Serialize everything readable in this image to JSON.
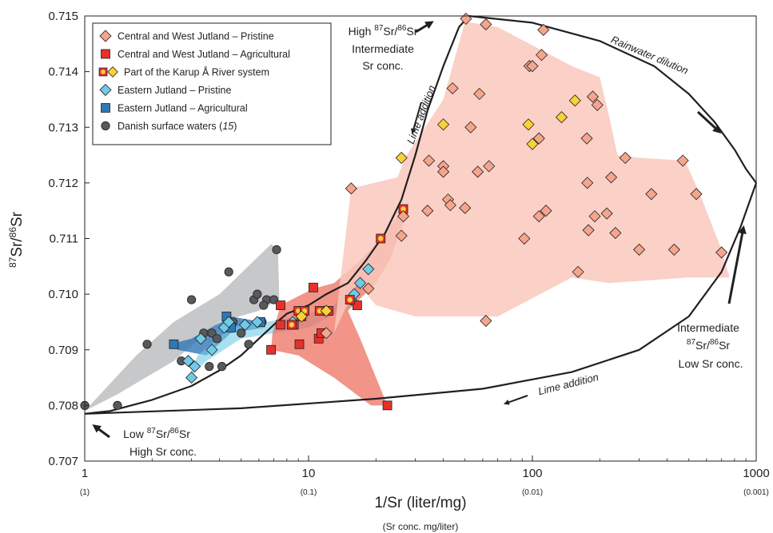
{
  "chart_data": {
    "type": "scatter",
    "xlabel": "1/Sr (liter/mg)",
    "xlabel_sub": "(Sr conc. mg/liter)",
    "ylabel_main": "Sr/",
    "ylabel_sup1": "87",
    "ylabel_sup2": "86",
    "ylabel_end": "Sr",
    "xscale": "log",
    "xlim": [
      1,
      1000
    ],
    "ylim": [
      0.707,
      0.715
    ],
    "x_ticks": [
      {
        "value": 1,
        "label": "1",
        "sub": "(1)"
      },
      {
        "value": 10,
        "label": "10",
        "sub": "(0.1)"
      },
      {
        "value": 100,
        "label": "100",
        "sub": "(0.01)"
      },
      {
        "value": 1000,
        "label": "1000",
        "sub": "(0.001)"
      }
    ],
    "y_ticks": [
      "0.707",
      "0.708",
      "0.709",
      "0.710",
      "0.711",
      "0.712",
      "0.713",
      "0.714",
      "0.715"
    ],
    "legend_position": "top-left",
    "colors": {
      "cw_pristine": "#f4a58c",
      "cw_agri": "#e8302a",
      "karup_fill": "#f9d23a",
      "e_pristine": "#6fcbe8",
      "e_agri": "#2f78b7",
      "danish": "#58595b",
      "outline": "#231f20"
    },
    "legend": [
      {
        "label": "Central and West Jutland – Pristine",
        "marker": "diamond",
        "color": "#f4a58c"
      },
      {
        "label": "Central and West Jutland – Agricultural",
        "marker": "square",
        "color": "#e8302a"
      },
      {
        "label": "Part of the Karup Å River system",
        "marker": "karup",
        "color": "#f9d23a"
      },
      {
        "label": "Eastern Jutland – Pristine",
        "marker": "diamond",
        "color": "#6fcbe8"
      },
      {
        "label": "Eastern Jutland – Agricultural",
        "marker": "square",
        "color": "#2f78b7"
      },
      {
        "label": "Danish surface waters (",
        "label_it": "15",
        "label_end": ")",
        "marker": "circle",
        "color": "#58595b"
      }
    ],
    "regions": [
      {
        "name": "danish-surface-waters-region",
        "color": "#bcbec0",
        "opacity": 0.85,
        "points": [
          [
            1,
            0.7079
          ],
          [
            1.4,
            0.7082
          ],
          [
            2.5,
            0.7088
          ],
          [
            4,
            0.7095
          ],
          [
            6,
            0.7097
          ],
          [
            7.4,
            0.7099
          ],
          [
            7.3,
            0.7108
          ],
          [
            6.8,
            0.7109
          ],
          [
            4,
            0.71
          ],
          [
            2.5,
            0.7095
          ],
          [
            1.7,
            0.7089
          ]
        ]
      },
      {
        "name": "eastern-jutland-agricultural-region",
        "color": "#2f78b7",
        "opacity": 0.8,
        "points": [
          [
            2.4,
            0.7091
          ],
          [
            3,
            0.7092
          ],
          [
            4.5,
            0.7096
          ],
          [
            6.2,
            0.7095
          ],
          [
            6.4,
            0.7094
          ],
          [
            4.5,
            0.7093
          ],
          [
            3.5,
            0.7089
          ],
          [
            2.6,
            0.709
          ]
        ]
      },
      {
        "name": "eastern-jutland-pristine-region",
        "color": "#6fcbe8",
        "opacity": 0.6,
        "points": [
          [
            2.9,
            0.7085
          ],
          [
            3.2,
            0.7089
          ],
          [
            4.5,
            0.7094
          ],
          [
            6.5,
            0.7095
          ],
          [
            9,
            0.7096
          ],
          [
            13,
            0.7098
          ],
          [
            17.5,
            0.7104
          ],
          [
            18,
            0.7103
          ],
          [
            14,
            0.7097
          ],
          [
            10,
            0.7094
          ],
          [
            7,
            0.7093
          ],
          [
            5,
            0.7092
          ],
          [
            3.5,
            0.7088
          ]
        ]
      },
      {
        "name": "central-west-agricultural-region",
        "color": "#ed7060",
        "opacity": 0.75,
        "points": [
          [
            6.8,
            0.709
          ],
          [
            6.9,
            0.7093
          ],
          [
            7.5,
            0.7098
          ],
          [
            10.5,
            0.7101
          ],
          [
            13,
            0.7102
          ],
          [
            17,
            0.7106
          ],
          [
            21,
            0.711
          ],
          [
            26.5,
            0.71155
          ],
          [
            27.5,
            0.71145
          ],
          [
            23,
            0.7106
          ],
          [
            20,
            0.7102
          ],
          [
            15,
            0.7097
          ],
          [
            17,
            0.7092
          ],
          [
            22.5,
            0.708
          ],
          [
            19,
            0.708
          ],
          [
            13,
            0.7085
          ],
          [
            9,
            0.7089
          ]
        ]
      },
      {
        "name": "central-west-pristine-region",
        "color": "#f9c8bd",
        "opacity": 0.85,
        "points": [
          [
            13,
            0.7093
          ],
          [
            15.5,
            0.7119
          ],
          [
            25,
            0.7121
          ],
          [
            27,
            0.71245
          ],
          [
            40,
            0.7135
          ],
          [
            50,
            0.7149
          ],
          [
            70,
            0.7148
          ],
          [
            150,
            0.7141
          ],
          [
            200,
            0.7139
          ],
          [
            220,
            0.7132
          ],
          [
            240,
            0.7125
          ],
          [
            300,
            0.71245
          ],
          [
            480,
            0.7124
          ],
          [
            560,
            0.7118
          ],
          [
            700,
            0.7108
          ],
          [
            760,
            0.7103
          ],
          [
            500,
            0.7103
          ],
          [
            220,
            0.7102
          ],
          [
            150,
            0.7103
          ],
          [
            70,
            0.7096
          ],
          [
            30,
            0.7096
          ],
          [
            20,
            0.7098
          ],
          [
            16.5,
            0.7102
          ]
        ]
      }
    ],
    "envelope": {
      "upper_left_curve": [
        [
          1,
          0.70785
        ],
        [
          1.3,
          0.7079
        ],
        [
          2,
          0.7081
        ],
        [
          3,
          0.70835
        ],
        [
          4,
          0.70863
        ],
        [
          5,
          0.7089
        ],
        [
          6,
          0.7092
        ],
        [
          7,
          0.70945
        ],
        [
          8,
          0.70965
        ],
        [
          10,
          0.7098
        ],
        [
          12,
          0.71
        ],
        [
          15,
          0.7102
        ],
        [
          18,
          0.7106
        ],
        [
          22,
          0.7111
        ],
        [
          26,
          0.7117
        ],
        [
          30,
          0.7125
        ],
        [
          34,
          0.7133
        ],
        [
          40,
          0.7141
        ],
        [
          47,
          0.7148
        ],
        [
          52,
          0.715
        ]
      ],
      "upper_right_curve": [
        [
          52,
          0.715
        ],
        [
          100,
          0.71488
        ],
        [
          200,
          0.71455
        ],
        [
          350,
          0.7141
        ],
        [
          500,
          0.7136
        ],
        [
          650,
          0.7131
        ],
        [
          800,
          0.7126
        ],
        [
          900,
          0.71225
        ],
        [
          1000,
          0.712
        ]
      ],
      "bottom_curve": [
        [
          1000,
          0.712
        ],
        [
          850,
          0.7112
        ],
        [
          700,
          0.7104
        ],
        [
          500,
          0.7096
        ],
        [
          300,
          0.709
        ],
        [
          150,
          0.7086
        ],
        [
          60,
          0.7083
        ],
        [
          20,
          0.70812
        ],
        [
          5,
          0.70795
        ],
        [
          1,
          0.70785
        ]
      ]
    },
    "series": [
      {
        "name": "Danish surface waters",
        "marker": "circle",
        "color": "#58595b",
        "points": [
          [
            1,
            0.708
          ],
          [
            1.4,
            0.708
          ],
          [
            1.9,
            0.7091
          ],
          [
            2.7,
            0.7088
          ],
          [
            3,
            0.7099
          ],
          [
            3.4,
            0.7093
          ],
          [
            3.6,
            0.7087
          ],
          [
            3.7,
            0.7093
          ],
          [
            3.9,
            0.7092
          ],
          [
            4.1,
            0.7087
          ],
          [
            4.4,
            0.7104
          ],
          [
            4.6,
            0.7095
          ],
          [
            5,
            0.7093
          ],
          [
            5.4,
            0.7091
          ],
          [
            5.7,
            0.7099
          ],
          [
            5.9,
            0.71
          ],
          [
            6.2,
            0.7095
          ],
          [
            6.5,
            0.7099
          ],
          [
            7,
            0.7099
          ],
          [
            7.2,
            0.7108
          ],
          [
            6.3,
            0.7098
          ]
        ]
      },
      {
        "name": "Eastern Jutland – Agricultural",
        "marker": "square",
        "color": "#2f78b7",
        "points": [
          [
            2.5,
            0.7091
          ],
          [
            4.3,
            0.7096
          ],
          [
            4.5,
            0.7094
          ],
          [
            6.1,
            0.7095
          ]
        ]
      },
      {
        "name": "Eastern Jutland – Pristine",
        "marker": "diamond",
        "color": "#6fcbe8",
        "points": [
          [
            2.9,
            0.7088
          ],
          [
            3,
            0.7085
          ],
          [
            3.1,
            0.7087
          ],
          [
            3.3,
            0.7092
          ],
          [
            3.7,
            0.709
          ],
          [
            4.2,
            0.7094
          ],
          [
            4.4,
            0.7095
          ],
          [
            5.2,
            0.70945
          ],
          [
            5.9,
            0.7095
          ],
          [
            8.5,
            0.7095
          ],
          [
            15.5,
            0.7099
          ],
          [
            16,
            0.71
          ],
          [
            17,
            0.7102
          ],
          [
            18.5,
            0.71045
          ]
        ]
      },
      {
        "name": "Central and West Jutland – Agricultural",
        "marker": "square",
        "color": "#e8302a",
        "points": [
          [
            6.8,
            0.709
          ],
          [
            7.5,
            0.7098
          ],
          [
            7.5,
            0.70945
          ],
          [
            8.6,
            0.70945
          ],
          [
            9.1,
            0.7091
          ],
          [
            9.3,
            0.7096
          ],
          [
            10.5,
            0.71012
          ],
          [
            11.1,
            0.7092
          ],
          [
            11.4,
            0.7093
          ],
          [
            12,
            0.7097
          ],
          [
            16.5,
            0.7098
          ],
          [
            22.5,
            0.708
          ]
        ]
      },
      {
        "name": "Part of the Karup Å River system",
        "marker": "karup-square",
        "color": "#e8302a",
        "points": [
          [
            8.4,
            0.70945
          ],
          [
            9,
            0.7097
          ],
          [
            9.6,
            0.7097
          ],
          [
            11.2,
            0.7097
          ],
          [
            12.3,
            0.7097
          ],
          [
            15.3,
            0.7099
          ],
          [
            21,
            0.711
          ],
          [
            26.5,
            0.71153
          ]
        ]
      },
      {
        "name": "Part of the Karup Å River system",
        "marker": "karup-diamond",
        "color": "#f9d23a",
        "points": [
          [
            9.3,
            0.7096
          ],
          [
            12,
            0.7097
          ],
          [
            26,
            0.71245
          ],
          [
            40,
            0.71305
          ],
          [
            96,
            0.71305
          ],
          [
            100,
            0.7127
          ],
          [
            135,
            0.71318
          ],
          [
            155,
            0.71348
          ]
        ]
      },
      {
        "name": "Central and West Jutland – Pristine",
        "marker": "diamond",
        "color": "#f4a58c",
        "points": [
          [
            12,
            0.7093
          ],
          [
            15.5,
            0.7119
          ],
          [
            18.5,
            0.7101
          ],
          [
            26,
            0.71105
          ],
          [
            26.5,
            0.7114
          ],
          [
            34,
            0.7115
          ],
          [
            34.5,
            0.7124
          ],
          [
            40,
            0.7123
          ],
          [
            40,
            0.7122
          ],
          [
            42,
            0.7117
          ],
          [
            43,
            0.7116
          ],
          [
            44,
            0.7137
          ],
          [
            50,
            0.71155
          ],
          [
            50.5,
            0.71495
          ],
          [
            53,
            0.713
          ],
          [
            57,
            0.7122
          ],
          [
            58,
            0.7136
          ],
          [
            62,
            0.71485
          ],
          [
            64,
            0.7123
          ],
          [
            62,
            0.70952
          ],
          [
            92,
            0.711
          ],
          [
            97,
            0.7141
          ],
          [
            100,
            0.7141
          ],
          [
            107,
            0.7114
          ],
          [
            107,
            0.7128
          ],
          [
            110,
            0.7143
          ],
          [
            112,
            0.71475
          ],
          [
            115,
            0.7115
          ],
          [
            160,
            0.7104
          ],
          [
            175,
            0.7128
          ],
          [
            176,
            0.712
          ],
          [
            178,
            0.71115
          ],
          [
            186,
            0.71355
          ],
          [
            190,
            0.7114
          ],
          [
            195,
            0.7134
          ],
          [
            215,
            0.71145
          ],
          [
            225,
            0.7121
          ],
          [
            235,
            0.7111
          ],
          [
            260,
            0.71245
          ],
          [
            300,
            0.7108
          ],
          [
            340,
            0.7118
          ],
          [
            430,
            0.7108
          ],
          [
            470,
            0.7124
          ],
          [
            540,
            0.7118
          ],
          [
            700,
            0.71075
          ]
        ]
      }
    ],
    "annotations": {
      "top_left": {
        "line1_pre": "High ",
        "sup1": "87",
        "mid": "Sr/",
        "sup2": "86",
        "post": "Sr",
        "line2": "Intermediate",
        "line3": "Sr conc."
      },
      "bottom_left": {
        "line1_pre": "Low ",
        "sup1": "87",
        "mid": "Sr/",
        "sup2": "86",
        "post": "Sr",
        "line2": "High Sr conc."
      },
      "right": {
        "line1": "Intermediate",
        "sup1": "87",
        "mid": "Sr/",
        "sup2": "86",
        "post": "Sr",
        "line3": "Low Sr conc."
      },
      "lime_addition_1": "Lime addition",
      "lime_addition_2": "Lime addition",
      "rainwater_dilution": "Rainwater dilution"
    }
  }
}
